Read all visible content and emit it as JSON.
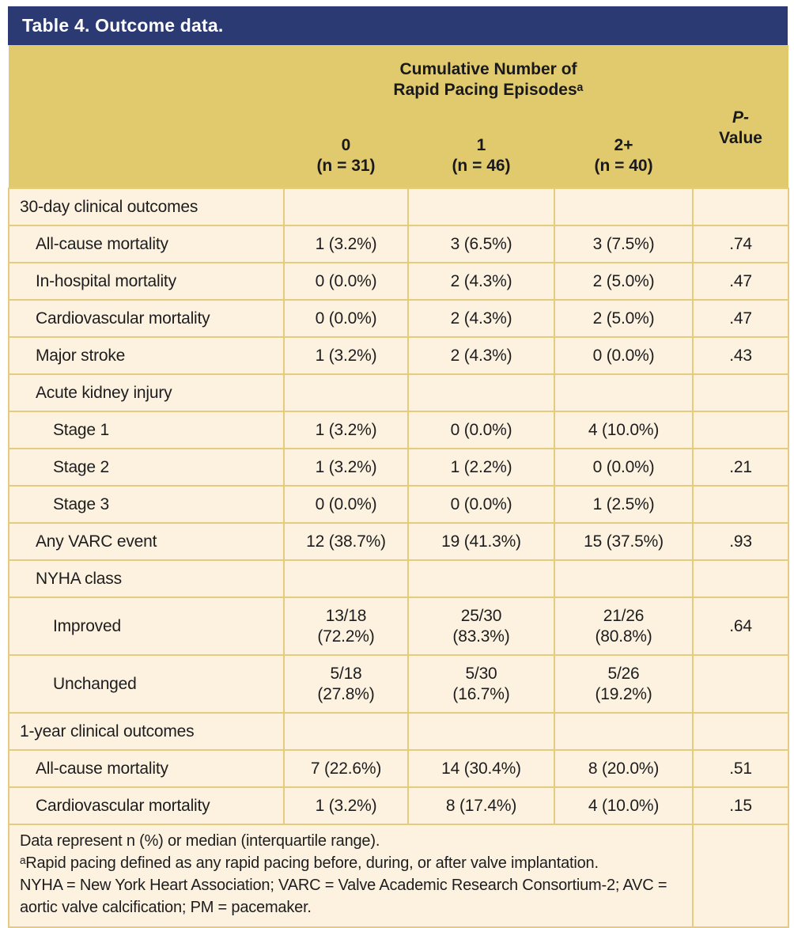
{
  "title": "Table 4. Outcome data.",
  "header": {
    "spanner": "Cumulative Number of\nRapid Pacing Episodesᵃ",
    "p_line1": "P-",
    "p_line2": "Value",
    "columns": [
      "0\n(n = 31)",
      "1\n(n = 46)",
      "2+\n(n = 40)"
    ]
  },
  "rows": [
    {
      "label": "30-day clinical outcomes",
      "values": [
        "",
        "",
        ""
      ],
      "p": ""
    },
    {
      "label": "All-cause mortality",
      "values": [
        "1 (3.2%)",
        "3 (6.5%)",
        "3 (7.5%)"
      ],
      "p": ".74"
    },
    {
      "label": "In-hospital mortality",
      "values": [
        "0 (0.0%)",
        "2 (4.3%)",
        "2 (5.0%)"
      ],
      "p": ".47"
    },
    {
      "label": "Cardiovascular mortality",
      "values": [
        "0 (0.0%)",
        "2 (4.3%)",
        "2 (5.0%)"
      ],
      "p": ".47"
    },
    {
      "label": "Major stroke",
      "values": [
        "1 (3.2%)",
        "2 (4.3%)",
        "0 (0.0%)"
      ],
      "p": ".43"
    },
    {
      "label": "Acute kidney injury",
      "values": [
        "",
        "",
        ""
      ],
      "p": ""
    },
    {
      "label": "Stage 1",
      "values": [
        "1 (3.2%)",
        "0 (0.0%)",
        "4 (10.0%)"
      ],
      "p": ""
    },
    {
      "label": "Stage 2",
      "values": [
        "1 (3.2%)",
        "1 (2.2%)",
        "0 (0.0%)"
      ],
      "p": ".21"
    },
    {
      "label": "Stage 3",
      "values": [
        "0 (0.0%)",
        "0 (0.0%)",
        "1 (2.5%)"
      ],
      "p": ""
    },
    {
      "label": "Any VARC event",
      "values": [
        "12 (38.7%)",
        "19 (41.3%)",
        "15 (37.5%)"
      ],
      "p": ".93"
    },
    {
      "label": "NYHA class",
      "values": [
        "",
        "",
        ""
      ],
      "p": ""
    },
    {
      "label": "Improved",
      "values": [
        "13/18\n(72.2%)",
        "25/30\n(83.3%)",
        "21/26\n(80.8%)"
      ],
      "p": ".64"
    },
    {
      "label": "Unchanged",
      "values": [
        "5/18\n(27.8%)",
        "5/30\n(16.7%)",
        "5/26\n(19.2%)"
      ],
      "p": ""
    },
    {
      "label": "1-year clinical outcomes",
      "values": [
        "",
        "",
        ""
      ],
      "p": ""
    },
    {
      "label": "All-cause mortality",
      "values": [
        "7 (22.6%)",
        "14 (30.4%)",
        "8 (20.0%)"
      ],
      "p": ".51"
    },
    {
      "label": "Cardiovascular mortality",
      "values": [
        "1 (3.2%)",
        "8 (17.4%)",
        "4 (10.0%)"
      ],
      "p": ".15"
    }
  ],
  "footnotes": [
    "Data represent n (%) or median (interquartile range).",
    "ᵃRapid pacing defined as any rapid pacing before, during, or after valve implantation.",
    "NYHA = New York Heart Association; VARC = Valve Academic Research Consortium-2; AVC = aortic valve calcification; PM = pacemaker."
  ],
  "colors": {
    "title_bar": "#2b3a73",
    "header_gold": "#e1ca6d",
    "row_cream": "#fcf2df",
    "border_gold": "#e4cc7c",
    "text": "#1d1d1f",
    "title_text": "#ffffff"
  }
}
